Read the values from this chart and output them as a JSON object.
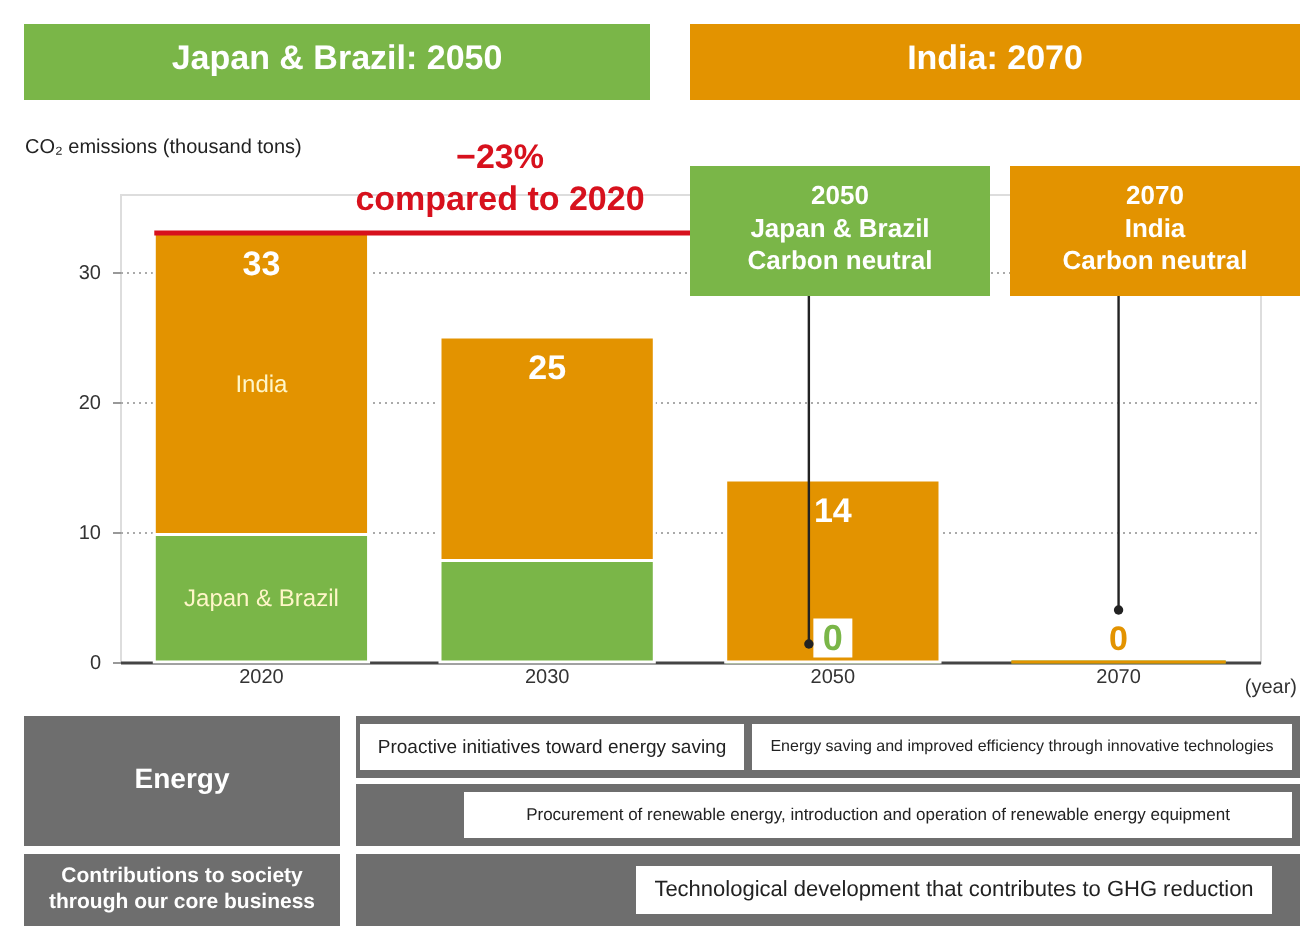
{
  "chart_data": {
    "type": "bar",
    "stacked": true,
    "legend": false,
    "grid": "y",
    "categories": [
      "2020",
      "2030",
      "2050",
      "2070"
    ],
    "series": [
      {
        "name": "Japan & Brazil",
        "color": "#7ab648",
        "values": [
          9.8,
          7.8,
          0,
          0
        ],
        "value_labels": [
          null,
          null,
          "0",
          null
        ]
      },
      {
        "name": "India",
        "color": "#e39300",
        "values": [
          23.2,
          17.2,
          14,
          0
        ]
      }
    ],
    "totals": [
      "33",
      "25",
      "14",
      "0"
    ],
    "ref_lines": [
      {
        "axis": "y",
        "value": 33,
        "color": "#d7111d"
      }
    ],
    "ylim": [
      0,
      36
    ],
    "yticks": [
      0,
      10,
      20,
      30
    ],
    "ylabel": "CO₂ emissions (thousand tons)",
    "xlabel": "(year)",
    "annotations": [
      "Japan & Brazil: 2050",
      "India: 2070",
      "−23%\ncompared to 2020",
      "2050\nJapan & Brazil\nCarbon neutral",
      "2070\nIndia\nCarbon neutral",
      "Energy",
      "Contributions to society\nthrough our core business",
      "Proactive initiatives toward energy saving",
      "Energy saving and improved efficiency through innovative technologies",
      "Procurement of renewable energy, introduction and operation of renewable energy equipment",
      "Technological development that contributes to GHG reduction"
    ]
  }
}
